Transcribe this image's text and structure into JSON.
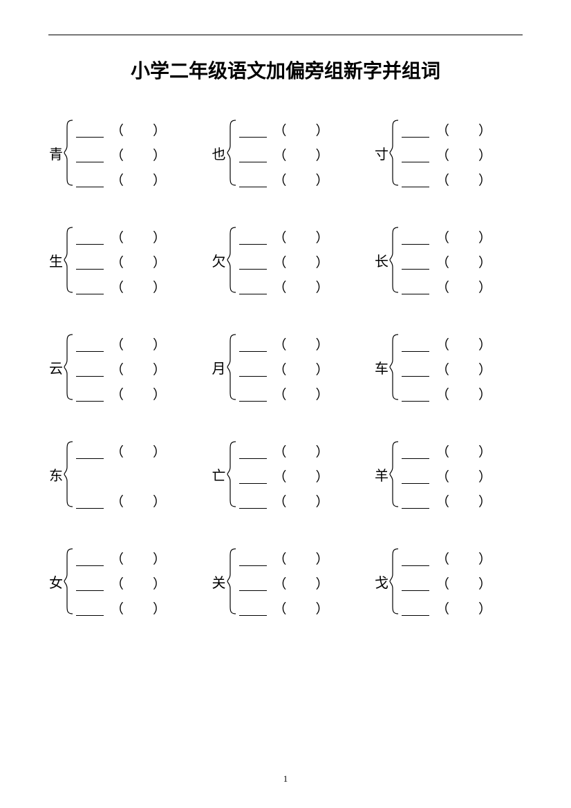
{
  "title": "小学二年级语文加偏旁组新字并组词",
  "page_number": "1",
  "colors": {
    "text": "#000000",
    "background": "#ffffff",
    "rule": "#000000"
  },
  "paren": {
    "left": "（",
    "right": "）"
  },
  "rows": [
    [
      {
        "char": "青",
        "lines": [
          true,
          true,
          true
        ]
      },
      {
        "char": "也",
        "lines": [
          true,
          true,
          true
        ]
      },
      {
        "char": "寸",
        "lines": [
          true,
          true,
          true
        ]
      }
    ],
    [
      {
        "char": "生",
        "lines": [
          true,
          true,
          true
        ]
      },
      {
        "char": "欠",
        "lines": [
          true,
          true,
          true
        ]
      },
      {
        "char": "长",
        "lines": [
          true,
          true,
          true
        ]
      }
    ],
    [
      {
        "char": "云",
        "lines": [
          true,
          true,
          true
        ]
      },
      {
        "char": "月",
        "lines": [
          true,
          true,
          true
        ]
      },
      {
        "char": "车",
        "lines": [
          true,
          true,
          true
        ]
      }
    ],
    [
      {
        "char": "东",
        "lines": [
          true,
          false,
          true
        ]
      },
      {
        "char": "亡",
        "lines": [
          true,
          true,
          true
        ]
      },
      {
        "char": "羊",
        "lines": [
          true,
          true,
          true
        ]
      }
    ],
    [
      {
        "char": "女",
        "lines": [
          true,
          true,
          true
        ]
      },
      {
        "char": "关",
        "lines": [
          true,
          true,
          true
        ]
      },
      {
        "char": "戈",
        "lines": [
          true,
          true,
          true
        ]
      }
    ]
  ]
}
